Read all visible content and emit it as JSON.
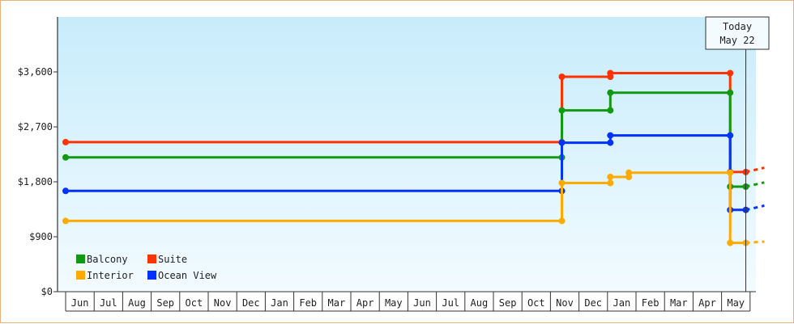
{
  "chart_data": {
    "type": "line",
    "step": true,
    "title": "",
    "xlabel": "",
    "ylabel": "",
    "ylim": [
      0,
      4500
    ],
    "y_ticks": [
      0,
      900,
      1800,
      2700,
      3600
    ],
    "y_tick_labels": [
      "$0",
      "$900",
      "$1,800",
      "$2,700",
      "$3,600"
    ],
    "grid": false,
    "legend_position": "bottom-left",
    "x_months": [
      "Jun",
      "Jul",
      "Aug",
      "Sep",
      "Oct",
      "Nov",
      "Dec",
      "Jan",
      "Feb",
      "Mar",
      "Apr",
      "May",
      "Jun",
      "Jul",
      "Aug",
      "Sep",
      "Oct",
      "Nov",
      "Dec",
      "Jan",
      "Feb",
      "Mar",
      "Apr",
      "May"
    ],
    "x_domain": [
      0,
      24.5
    ],
    "today": {
      "x": 23.85,
      "line1": "Today",
      "line2": "May 22"
    },
    "series": [
      {
        "name": "Suite",
        "color": "#ff3300",
        "points": [
          [
            0,
            2450
          ],
          [
            17.4,
            2450
          ],
          [
            17.4,
            3520
          ],
          [
            19.1,
            3520
          ],
          [
            19.1,
            3580
          ],
          [
            23.3,
            3580
          ],
          [
            23.3,
            1960
          ],
          [
            23.85,
            1960
          ]
        ],
        "projection": [
          [
            23.85,
            1960
          ],
          [
            24.5,
            2030
          ]
        ]
      },
      {
        "name": "Balcony",
        "color": "#119911",
        "points": [
          [
            0,
            2200
          ],
          [
            17.4,
            2200
          ],
          [
            17.4,
            2970
          ],
          [
            19.1,
            2970
          ],
          [
            19.1,
            3260
          ],
          [
            23.3,
            3260
          ],
          [
            23.3,
            1720
          ],
          [
            23.85,
            1720
          ]
        ],
        "projection": [
          [
            23.85,
            1720
          ],
          [
            24.5,
            1790
          ]
        ]
      },
      {
        "name": "Ocean View",
        "color": "#0033ff",
        "points": [
          [
            0,
            1650
          ],
          [
            17.4,
            1650
          ],
          [
            17.4,
            2440
          ],
          [
            19.1,
            2440
          ],
          [
            19.1,
            2560
          ],
          [
            23.3,
            2560
          ],
          [
            23.3,
            1340
          ],
          [
            23.85,
            1340
          ]
        ],
        "projection": [
          [
            23.85,
            1340
          ],
          [
            24.5,
            1410
          ]
        ]
      },
      {
        "name": "Interior",
        "color": "#ffaa00",
        "points": [
          [
            0,
            1160
          ],
          [
            17.4,
            1160
          ],
          [
            17.4,
            1780
          ],
          [
            19.1,
            1780
          ],
          [
            19.1,
            1880
          ],
          [
            19.75,
            1880
          ],
          [
            19.75,
            1950
          ],
          [
            23.3,
            1950
          ],
          [
            23.3,
            800
          ],
          [
            23.85,
            800
          ]
        ],
        "projection": [
          [
            23.85,
            800
          ],
          [
            24.5,
            820
          ]
        ]
      }
    ]
  },
  "legend": [
    {
      "name": "Balcony",
      "color": "#119911"
    },
    {
      "name": "Suite",
      "color": "#ff3300"
    },
    {
      "name": "Interior",
      "color": "#ffaa00"
    },
    {
      "name": "Ocean View",
      "color": "#0033ff"
    }
  ]
}
